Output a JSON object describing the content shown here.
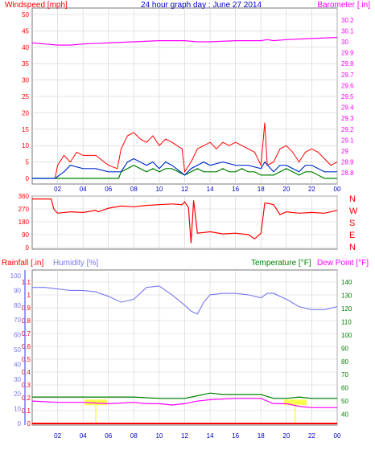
{
  "title": "24 hour graph day : June 27 2014",
  "colors": {
    "wind": "#ff0000",
    "wind_avg": "#0033cc",
    "wind_gust_fill": "#008000",
    "barometer": "#ff00ff",
    "direction": "#ff0000",
    "rainfall": "#ff0000",
    "humidity": "#7777ee",
    "temperature": "#008000",
    "dew_point": "#ff00ff",
    "solar": "#ffff00",
    "axis_labels": "#0000cc"
  },
  "x_ticks": [
    "02",
    "04",
    "06",
    "08",
    "10",
    "12",
    "14",
    "16",
    "18",
    "20",
    "22",
    "00"
  ],
  "chart_data": [
    {
      "type": "line",
      "name": "wind_barometer",
      "left_label": "Windspeed [mph]",
      "right_label": "Barometer [.in]",
      "y_left_ticks": [
        "50",
        "45",
        "40",
        "35",
        "30",
        "25",
        "20",
        "15",
        "10",
        "5",
        "0"
      ],
      "y_left_range": [
        0,
        50
      ],
      "y_right_ticks": [
        "30.2",
        "30.1",
        "30",
        "29.9",
        "29.8",
        "29.7",
        "29.6",
        "29.5",
        "29.4",
        "29.3",
        "29.2",
        "29.1",
        "29",
        "28.9",
        "28.8"
      ],
      "y_right_range": [
        28.75,
        30.25
      ],
      "wind_max": {
        "x": [
          0,
          1.8,
          2.0,
          2.5,
          3,
          3.5,
          4,
          5,
          6,
          6.7,
          7,
          7.5,
          8,
          8.5,
          9,
          9.5,
          10,
          10.5,
          11,
          11.8,
          12,
          12.5,
          13,
          13.5,
          14,
          14.5,
          15,
          15.5,
          16,
          16.5,
          17,
          17.5,
          18,
          18.3,
          18.5,
          19,
          19.5,
          20,
          20.5,
          21,
          21.5,
          22,
          22.5,
          23,
          23.5,
          24
        ],
        "y": [
          0,
          0,
          4,
          7,
          5,
          8,
          7,
          7,
          4,
          3,
          9,
          13,
          14,
          12,
          11,
          13,
          10,
          12,
          11,
          9,
          2,
          5,
          9,
          10,
          11,
          9,
          11,
          10,
          11,
          10,
          9,
          8,
          4,
          17,
          4,
          5,
          9,
          10,
          8,
          5,
          8,
          9,
          8,
          6,
          4,
          5
        ]
      },
      "wind_avg": {
        "x": [
          0,
          1.8,
          2.5,
          3,
          4,
          5,
          6,
          7,
          7.5,
          8,
          8.5,
          9,
          9.5,
          10,
          10.5,
          11,
          12,
          12.5,
          13,
          13.5,
          14,
          15,
          16,
          17,
          18,
          18.3,
          19,
          19.5,
          20,
          21,
          21.5,
          22,
          23,
          24
        ],
        "y": [
          0,
          0,
          2,
          4,
          3,
          3,
          2,
          2,
          5,
          6,
          5,
          4,
          5,
          3,
          5,
          4,
          1,
          3,
          4,
          5,
          4,
          5,
          4,
          4,
          3,
          5,
          2,
          4,
          4,
          2,
          4,
          4,
          2,
          2
        ]
      },
      "wind_gust_fill": {
        "x": [
          0,
          6.8,
          7,
          7.5,
          8,
          8.5,
          9,
          9.5,
          10,
          10.5,
          11,
          11.5,
          12,
          12.5,
          13,
          13.5,
          14,
          14.5,
          15,
          15.5,
          16,
          16.5,
          17,
          17.5,
          18,
          19,
          19.5,
          20,
          20.5,
          21,
          21.5,
          22,
          22.5,
          23,
          24
        ],
        "y": [
          0,
          0,
          2,
          3,
          4,
          3,
          2,
          3,
          2,
          3,
          3,
          2,
          1,
          2,
          3,
          2,
          2,
          2,
          3,
          2,
          2,
          3,
          2,
          2,
          1,
          1,
          2,
          3,
          2,
          1,
          2,
          2,
          1,
          0,
          0
        ]
      },
      "barometer": {
        "x": [
          0,
          1,
          2,
          3,
          4,
          6,
          8,
          10,
          12,
          13,
          14,
          16,
          18,
          18.5,
          19,
          20,
          22,
          24
        ],
        "y": [
          29.99,
          29.98,
          29.97,
          29.97,
          29.98,
          29.99,
          30.0,
          30.01,
          30.01,
          30.0,
          30.0,
          30.01,
          30.01,
          30.02,
          30.01,
          30.02,
          30.03,
          30.04
        ]
      }
    },
    {
      "type": "line",
      "name": "wind_direction",
      "y_left_ticks": [
        "360",
        "270",
        "180",
        "90",
        "0"
      ],
      "y_right_ticks": [
        "N",
        "W",
        "S",
        "E",
        "N"
      ],
      "y_range": [
        0,
        360
      ],
      "direction": {
        "x": [
          0,
          1.5,
          1.7,
          2,
          3,
          4,
          5,
          5.2,
          6,
          7,
          8,
          9,
          10,
          11,
          11.8,
          12,
          12.3,
          12.5,
          12.7,
          13,
          14,
          15,
          16,
          17,
          17.5,
          18,
          18.3,
          18.5,
          19,
          19.5,
          20,
          21,
          22,
          23,
          24
        ],
        "y": [
          340,
          340,
          270,
          240,
          250,
          245,
          260,
          250,
          275,
          290,
          285,
          295,
          300,
          305,
          300,
          320,
          280,
          30,
          330,
          100,
          110,
          95,
          100,
          90,
          60,
          100,
          310,
          310,
          300,
          230,
          250,
          240,
          245,
          240,
          260
        ]
      }
    },
    {
      "type": "line",
      "name": "rain_humidity_temperature",
      "left_label": "Rainfall [.in]",
      "left_label_2": "Humidity [%]",
      "right_label": "Temperature [°F]",
      "right_label_2": "Dew Point [°F]",
      "y_rain_ticks": [
        "1.1",
        "1",
        "0.9",
        "0.8",
        "0.7",
        "0.6",
        "0.5",
        "0.4",
        "0.3",
        "0.2",
        "0.1",
        "0"
      ],
      "y_rain_range": [
        0,
        1.15
      ],
      "y_humidity_ticks": [
        "100",
        "90",
        "80",
        "70",
        "60",
        "50",
        "40",
        "30",
        "20",
        "10",
        "0"
      ],
      "y_humidity_range": [
        0,
        100
      ],
      "y_temp_ticks": [
        "140",
        "130",
        "120",
        "110",
        "100",
        "90",
        "80",
        "70",
        "60",
        "50",
        "40"
      ],
      "y_temp_range": [
        33,
        145
      ],
      "rainfall": {
        "x": [
          0,
          24
        ],
        "y": [
          0,
          0
        ]
      },
      "humidity": {
        "x": [
          0,
          1,
          2,
          3,
          4,
          5,
          6,
          7,
          8,
          9,
          10,
          11,
          12,
          12.5,
          13,
          13.5,
          14,
          15,
          16,
          17,
          18,
          18.5,
          19,
          20,
          21,
          22,
          23,
          24
        ],
        "y": [
          92,
          92,
          91,
          90,
          90,
          89,
          86,
          82,
          84,
          92,
          93,
          87,
          80,
          76,
          74,
          82,
          87,
          88,
          88,
          87,
          85,
          88,
          88,
          84,
          79,
          77,
          77,
          79
        ]
      },
      "temperature": {
        "x": [
          0,
          2,
          4,
          6,
          8,
          10,
          12,
          13,
          14,
          15,
          16,
          17,
          18,
          19,
          20,
          21,
          22,
          23,
          24
        ],
        "y": [
          53,
          53,
          53,
          53,
          53,
          52,
          52,
          54,
          56,
          55,
          55,
          55,
          55,
          52,
          52,
          53,
          52,
          52,
          52
        ]
      },
      "dew_point": {
        "x": [
          0,
          2,
          4,
          6,
          8,
          9,
          10,
          11,
          12,
          13,
          14,
          16,
          18,
          19,
          20,
          21,
          22,
          23,
          24
        ],
        "y": [
          50,
          49,
          49,
          48,
          49,
          48,
          48,
          47,
          48,
          50,
          51,
          52,
          52,
          48,
          48,
          46,
          45,
          45,
          45
        ]
      },
      "solar_flags": [
        {
          "x": 5,
          "height": 0.18
        },
        {
          "x": 20.7,
          "height": 0.18
        }
      ]
    }
  ]
}
